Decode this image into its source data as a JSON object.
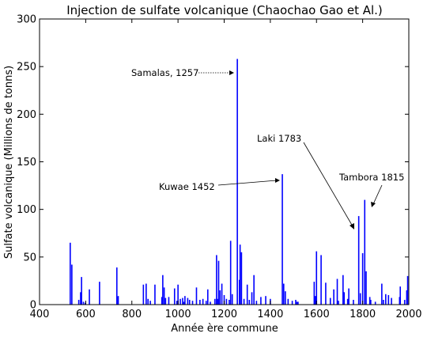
{
  "chart_data": {
    "type": "bar",
    "title": "Injection de sulfate volcanique (Chaochao Gao et Al.)",
    "xlabel": "Année ère commune",
    "ylabel": "Sulfate volcanique (Millions de tonns)",
    "xlim": [
      400,
      2000
    ],
    "ylim": [
      0,
      300
    ],
    "xticks": [
      "400",
      "600",
      "800",
      "1000",
      "1200",
      "1400",
      "1600",
      "1800",
      "2000"
    ],
    "yticks": [
      "0",
      "50",
      "100",
      "150",
      "200",
      "250",
      "300"
    ],
    "grid": false,
    "bar_color": "#0000ff",
    "x": [
      533,
      540,
      570,
      578,
      582,
      590,
      598,
      616,
      660,
      735,
      738,
      741,
      850,
      862,
      870,
      880,
      900,
      930,
      934,
      940,
      946,
      960,
      985,
      995,
      1000,
      1010,
      1020,
      1025,
      1030,
      1042,
      1050,
      1063,
      1080,
      1095,
      1108,
      1122,
      1129,
      1140,
      1160,
      1167,
      1171,
      1176,
      1182,
      1190,
      1200,
      1210,
      1222,
      1228,
      1235,
      1257,
      1266,
      1269,
      1275,
      1286,
      1300,
      1309,
      1320,
      1329,
      1340,
      1359,
      1380,
      1400,
      1452,
      1458,
      1465,
      1477,
      1495,
      1510,
      1515,
      1520,
      1590,
      1595,
      1600,
      1620,
      1640,
      1660,
      1675,
      1690,
      1695,
      1715,
      1720,
      1735,
      1740,
      1760,
      1783,
      1790,
      1800,
      1809,
      1815,
      1831,
      1835,
      1855,
      1883,
      1890,
      1900,
      1912,
      1925,
      1960,
      1963,
      1982,
      1991,
      1995
    ],
    "values": [
      65,
      42,
      5,
      13,
      29,
      3,
      2,
      16,
      24,
      39,
      8,
      9,
      21,
      22,
      6,
      4,
      21,
      8,
      31,
      18,
      7,
      8,
      17,
      4,
      21,
      6,
      7,
      3,
      9,
      7,
      5,
      4,
      18,
      5,
      6,
      4,
      16,
      3,
      6,
      52,
      6,
      46,
      15,
      22,
      10,
      6,
      5,
      67,
      11,
      258,
      26,
      63,
      55,
      6,
      21,
      5,
      13,
      31,
      4,
      8,
      9,
      6,
      137,
      22,
      14,
      6,
      4,
      5,
      3,
      3,
      24,
      9,
      56,
      52,
      23,
      7,
      16,
      27,
      4,
      31,
      13,
      6,
      17,
      5,
      93,
      12,
      54,
      110,
      35,
      8,
      5,
      3,
      22,
      5,
      11,
      10,
      7,
      8,
      19,
      5,
      15,
      30
    ],
    "annotations": [
      {
        "text": "Samalas, 1257",
        "x": 1257,
        "y": 243
      },
      {
        "text": "Kuwae 1452",
        "x": 1452,
        "y": 130
      },
      {
        "text": "Laki 1783",
        "x": 1783,
        "y": 78
      },
      {
        "text": "Tambora 1815",
        "x": 1815,
        "y": 100
      }
    ]
  }
}
